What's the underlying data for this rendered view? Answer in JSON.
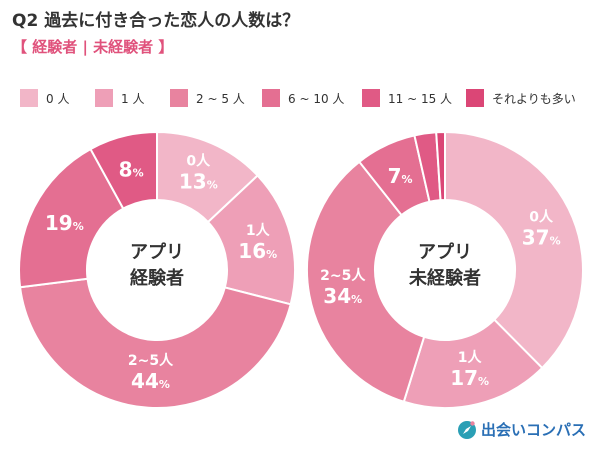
{
  "title": {
    "q": "Q2",
    "text": "過去に付き合った恋人の人数は？"
  },
  "subtitle": "【 経験者 | 未経験者 】",
  "brand": {
    "name": "出会いコンパス",
    "icon": "compass-icon"
  },
  "colors": {
    "palette": [
      "#f2b6c8",
      "#ee9fb7",
      "#e8839f",
      "#e46f92",
      "#e05a85",
      "#db4676"
    ]
  },
  "chart_data": [
    {
      "type": "pie",
      "center_label": [
        "アプリ",
        "経験者"
      ],
      "categories": [
        "0人",
        "1人",
        "2~5人",
        "6~10人",
        "11~15人",
        "それよりも多い"
      ],
      "values": [
        13,
        16,
        44,
        19,
        8,
        0
      ],
      "data_labels": [
        {
          "name": "0人",
          "value": "13",
          "unit": "%"
        },
        {
          "name": "1人",
          "value": "16",
          "unit": "%"
        },
        {
          "name": "2~5人",
          "value": "44",
          "unit": "%"
        },
        {
          "name": "",
          "value": "19",
          "unit": "%"
        },
        {
          "name": "",
          "value": "8",
          "unit": "%"
        }
      ]
    },
    {
      "type": "pie",
      "center_label": [
        "アプリ",
        "未経験者"
      ],
      "categories": [
        "0人",
        "1人",
        "2~5人",
        "6~10人",
        "11~15人",
        "それよりも多い"
      ],
      "values": [
        37,
        17,
        34,
        7,
        2.5,
        1
      ],
      "data_labels": [
        {
          "name": "0人",
          "value": "37",
          "unit": "%"
        },
        {
          "name": "1人",
          "value": "17",
          "unit": "%"
        },
        {
          "name": "2~5人",
          "value": "34",
          "unit": "%"
        },
        {
          "name": "",
          "value": "7",
          "unit": "%"
        }
      ]
    }
  ],
  "legend": [
    "0 人",
    "1 人",
    "2 ~ 5 人",
    "6 ~ 10 人",
    "11 ~ 15 人",
    "それよりも多い"
  ]
}
